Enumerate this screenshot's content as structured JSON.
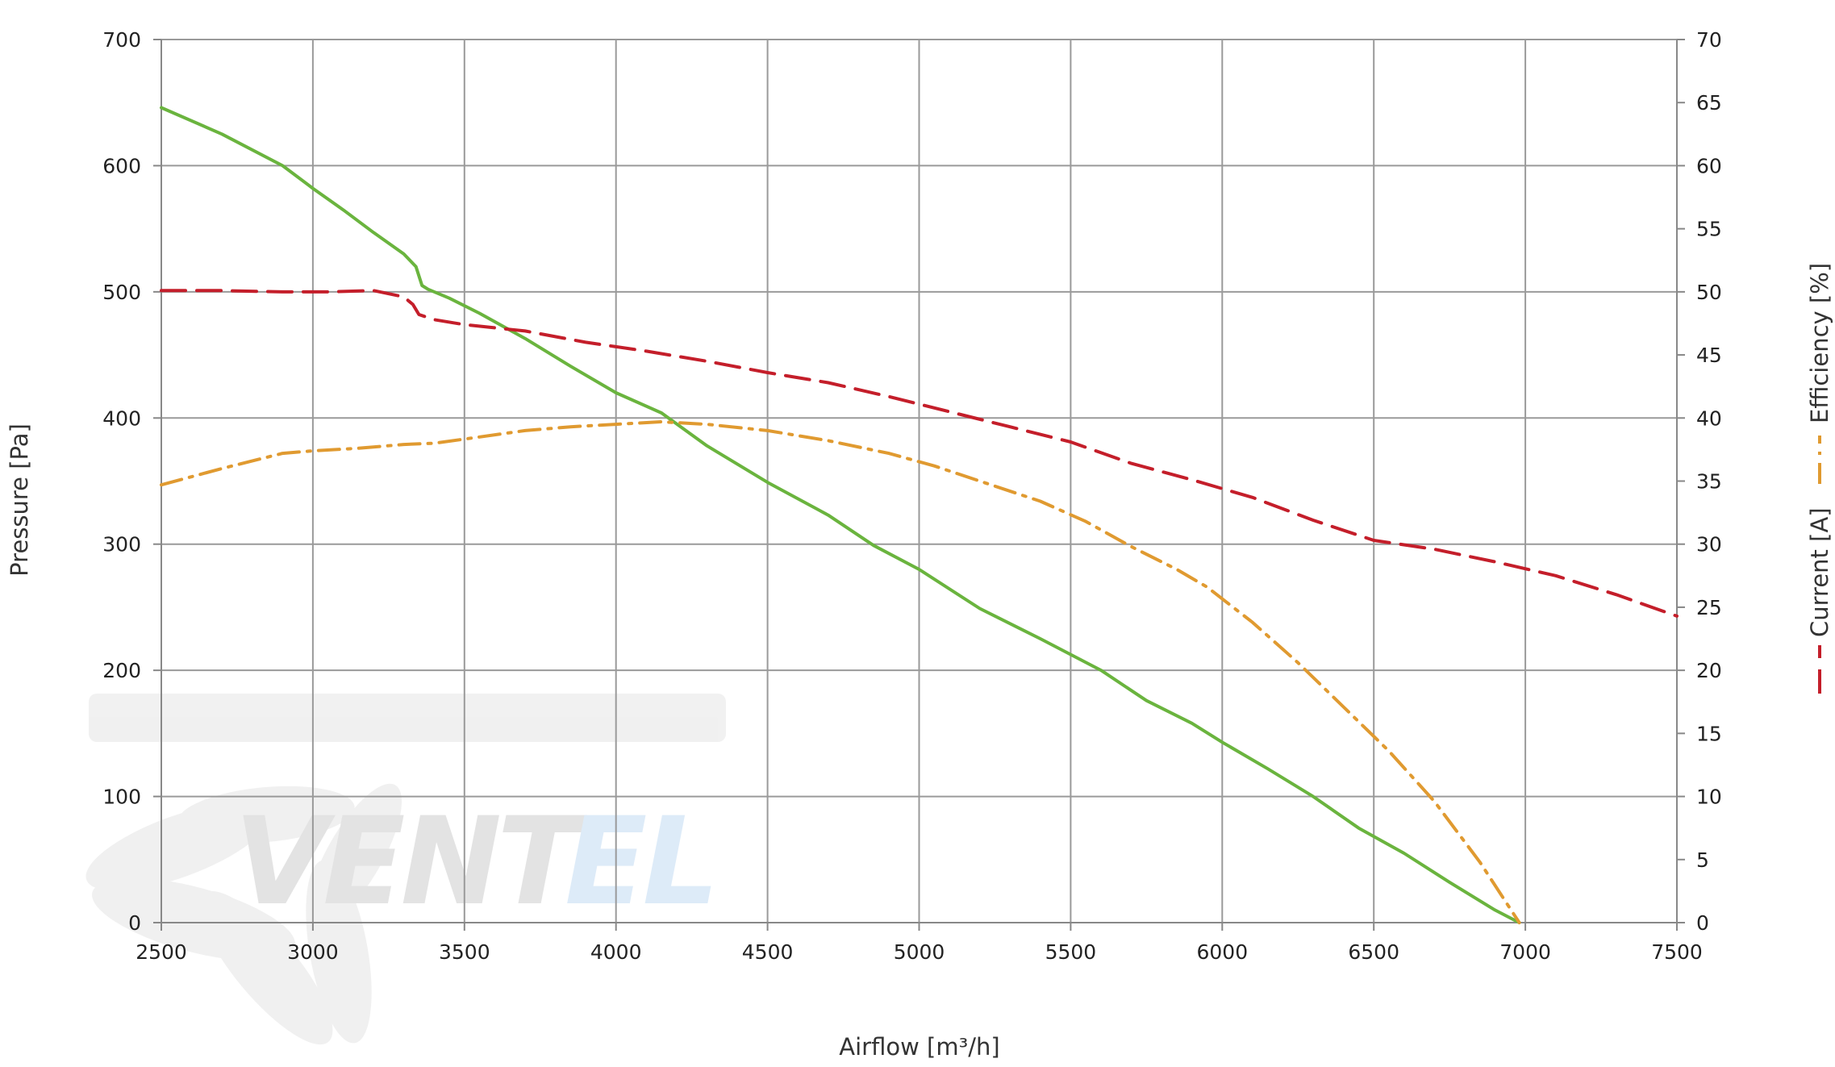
{
  "chart_data": {
    "type": "line",
    "title": "",
    "xlabel": "Airflow [m³/h]",
    "ylabel_left": "Pressure [Pa]",
    "xlim": [
      2500,
      7500
    ],
    "ylim_left": [
      0,
      700
    ],
    "ylim_right": [
      0,
      70
    ],
    "x_ticks": [
      "2500",
      "3000",
      "3500",
      "4000",
      "4500",
      "5000",
      "5500",
      "6000",
      "6500",
      "7000",
      "7500"
    ],
    "y_left_ticks": [
      "0",
      "100",
      "200",
      "300",
      "400",
      "500",
      "600",
      "700"
    ],
    "y_right_ticks": [
      "0",
      "5",
      "10",
      "15",
      "20",
      "25",
      "30",
      "35",
      "40",
      "45",
      "50",
      "55",
      "60",
      "65",
      "70"
    ],
    "grid": true,
    "legend_position": "right, vertical",
    "watermark": "ventel",
    "series": [
      {
        "name": "",
        "axis": "left",
        "color": "#6ab43e",
        "style": "solid",
        "x": [
          2500,
          2700,
          2900,
          3000,
          3100,
          3200,
          3300,
          3340,
          3360,
          3380,
          3450,
          3550,
          3700,
          3850,
          4000,
          4150,
          4300,
          4500,
          4700,
          4850,
          5000,
          5200,
          5400,
          5600,
          5750,
          5900,
          6000,
          6150,
          6300,
          6450,
          6600,
          6750,
          6900,
          6980
        ],
        "y": [
          646,
          625,
          600,
          582,
          565,
          547,
          530,
          520,
          505,
          502,
          495,
          483,
          463,
          441,
          420,
          404,
          378,
          349,
          323,
          299,
          280,
          249,
          225,
          200,
          176,
          158,
          143,
          122,
          100,
          75,
          55,
          32,
          10,
          0
        ]
      },
      {
        "name": "Current [A]",
        "axis": "right",
        "color": "#c41e2a",
        "style": "dashed",
        "x": [
          2500,
          2700,
          2900,
          3050,
          3200,
          3300,
          3330,
          3350,
          3400,
          3500,
          3700,
          3900,
          4100,
          4300,
          4500,
          4700,
          4900,
          5100,
          5300,
          5500,
          5700,
          5900,
          6100,
          6300,
          6500,
          6700,
          6900,
          7100,
          7300,
          7500
        ],
        "y": [
          50.1,
          50.1,
          50.0,
          50.0,
          50.1,
          49.6,
          49.0,
          48.2,
          47.8,
          47.4,
          46.9,
          46.0,
          45.3,
          44.5,
          43.6,
          42.8,
          41.7,
          40.5,
          39.3,
          38.1,
          36.4,
          35.1,
          33.7,
          31.9,
          30.3,
          29.6,
          28.6,
          27.5,
          26.0,
          24.3
        ]
      },
      {
        "name": "Efficiency [%]",
        "axis": "right",
        "color": "#e09a30",
        "style": "dashdot",
        "x": [
          2500,
          2700,
          2900,
          3000,
          3150,
          3300,
          3400,
          3550,
          3700,
          3850,
          4000,
          4150,
          4300,
          4500,
          4700,
          4900,
          5050,
          5200,
          5400,
          5550,
          5700,
          5850,
          5950,
          6100,
          6250,
          6400,
          6550,
          6700,
          6850,
          6980
        ],
        "y": [
          34.7,
          36.0,
          37.2,
          37.4,
          37.6,
          37.9,
          38.0,
          38.5,
          39.0,
          39.3,
          39.5,
          39.7,
          39.5,
          39.0,
          38.2,
          37.2,
          36.2,
          35.0,
          33.4,
          31.8,
          29.8,
          28.0,
          26.6,
          23.8,
          20.6,
          17.1,
          13.6,
          9.6,
          4.8,
          0.0
        ]
      }
    ]
  }
}
